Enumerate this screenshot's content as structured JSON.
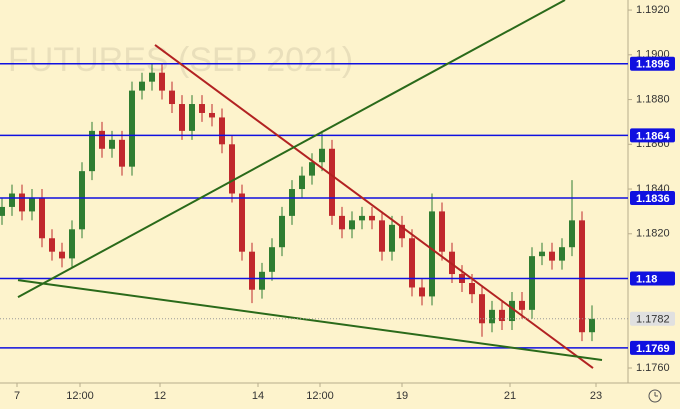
{
  "chart_data": {
    "type": "candlestick",
    "watermark": "FUTURES (SEP 2021)",
    "xlim": [
      0,
      157
    ],
    "xticks": [
      {
        "value": 4.25,
        "label": "7"
      },
      {
        "value": 20,
        "label": "12:00"
      },
      {
        "value": 40,
        "label": "12"
      },
      {
        "value": 64.5,
        "label": "14"
      },
      {
        "value": 80,
        "label": "12:00"
      },
      {
        "value": 100.5,
        "label": "19"
      },
      {
        "value": 127.5,
        "label": "21"
      },
      {
        "value": 149,
        "label": "23"
      }
    ],
    "ylim": [
      1.17533,
      1.19245
    ],
    "yticks": [
      {
        "value": 1.192,
        "label": "1.1920"
      },
      {
        "value": 1.19,
        "label": "1.1900"
      },
      {
        "value": 1.188,
        "label": "1.1880"
      },
      {
        "value": 1.186,
        "label": "1.1860"
      },
      {
        "value": 1.184,
        "label": "1.1840"
      },
      {
        "value": 1.182,
        "label": "1.1820"
      },
      {
        "value": 1.176,
        "label": "1.1760"
      }
    ],
    "up_color": "#2f7d32",
    "down_color": "#c0282d",
    "x": [
      0.5,
      3,
      5.5,
      8,
      10.5,
      13,
      15.5,
      18,
      20.5,
      23,
      25.5,
      28,
      30.5,
      33,
      35.5,
      38,
      40.5,
      43,
      45.5,
      48,
      50.5,
      53,
      55.5,
      58,
      60.5,
      63,
      65.5,
      68,
      70.5,
      73,
      75.5,
      78,
      80.5,
      83,
      85.5,
      88,
      90.5,
      93,
      95.5,
      98,
      100.5,
      103,
      105.5,
      108,
      110.5,
      113,
      115.5,
      118,
      120.5,
      123,
      125.5,
      128,
      130.5,
      133,
      135.5,
      138,
      140.5,
      143,
      145.5,
      148
    ],
    "open": [
      1.1828,
      1.1832,
      1.1838,
      1.183,
      1.1836,
      1.1818,
      1.1812,
      1.1809,
      1.1822,
      1.1848,
      1.1866,
      1.1858,
      1.1862,
      1.185,
      1.1884,
      1.1888,
      1.1892,
      1.1884,
      1.1878,
      1.1866,
      1.1878,
      1.1874,
      1.1872,
      1.186,
      1.1838,
      1.1812,
      1.1795,
      1.1803,
      1.1814,
      1.1828,
      1.184,
      1.1846,
      1.1852,
      1.1858,
      1.1828,
      1.1822,
      1.1826,
      1.1828,
      1.1826,
      1.1812,
      1.1824,
      1.1818,
      1.1796,
      1.1792,
      1.183,
      1.1812,
      1.1802,
      1.1798,
      1.1793,
      1.178,
      1.1786,
      1.1781,
      1.179,
      1.1786,
      1.181,
      1.1812,
      1.1808,
      1.1814,
      1.1826,
      1.1776
    ],
    "high": [
      1.1836,
      1.1842,
      1.1842,
      1.184,
      1.184,
      1.1822,
      1.1816,
      1.1826,
      1.1852,
      1.187,
      1.187,
      1.1866,
      1.1866,
      1.1888,
      1.1892,
      1.1896,
      1.1896,
      1.1888,
      1.1882,
      1.1882,
      1.1882,
      1.1878,
      1.1876,
      1.1864,
      1.1842,
      1.1816,
      1.1807,
      1.1818,
      1.1832,
      1.1844,
      1.185,
      1.1856,
      1.1866,
      1.1862,
      1.1832,
      1.183,
      1.1832,
      1.1832,
      1.183,
      1.1828,
      1.1828,
      1.1822,
      1.18,
      1.1838,
      1.1834,
      1.1816,
      1.1806,
      1.1802,
      1.1797,
      1.179,
      1.179,
      1.1794,
      1.1794,
      1.1814,
      1.1816,
      1.1816,
      1.1818,
      1.1844,
      1.183,
      1.1788
    ],
    "low": [
      1.1824,
      1.1828,
      1.1826,
      1.1826,
      1.1814,
      1.1808,
      1.1805,
      1.1805,
      1.1818,
      1.1844,
      1.1854,
      1.1854,
      1.1846,
      1.1846,
      1.188,
      1.1884,
      1.188,
      1.1874,
      1.1862,
      1.1862,
      1.187,
      1.1868,
      1.1856,
      1.1834,
      1.1808,
      1.1789,
      1.1791,
      1.1799,
      1.181,
      1.1824,
      1.1836,
      1.1842,
      1.1848,
      1.1824,
      1.1818,
      1.1818,
      1.1822,
      1.1822,
      1.1808,
      1.1808,
      1.1814,
      1.1792,
      1.1788,
      1.1788,
      1.1808,
      1.1798,
      1.1794,
      1.1789,
      1.1774,
      1.1776,
      1.1777,
      1.1777,
      1.1782,
      1.1782,
      1.1806,
      1.1804,
      1.1804,
      1.181,
      1.1772,
      1.1772
    ],
    "close": [
      1.1832,
      1.1838,
      1.183,
      1.1836,
      1.1818,
      1.1812,
      1.1809,
      1.1822,
      1.1848,
      1.1866,
      1.1858,
      1.1862,
      1.185,
      1.1884,
      1.1888,
      1.1892,
      1.1884,
      1.1878,
      1.1866,
      1.1878,
      1.1874,
      1.1872,
      1.186,
      1.1838,
      1.1812,
      1.1795,
      1.1803,
      1.1814,
      1.1828,
      1.184,
      1.1846,
      1.1852,
      1.1858,
      1.1828,
      1.1822,
      1.1826,
      1.1828,
      1.1826,
      1.1812,
      1.1824,
      1.1818,
      1.1796,
      1.1792,
      1.183,
      1.1812,
      1.1802,
      1.1798,
      1.1793,
      1.178,
      1.1786,
      1.1781,
      1.179,
      1.1786,
      1.181,
      1.1812,
      1.1808,
      1.1814,
      1.1826,
      1.1776,
      1.1782
    ],
    "levels": {
      "color": "#1010e0",
      "values": [
        1.1896,
        1.1864,
        1.1836,
        1.18,
        1.1769
      ]
    },
    "last_price": 1.1782,
    "trend_lines": [
      {
        "color": "#b22222",
        "x": [
          38.75,
          148.25
        ],
        "y": [
          1.19044,
          1.176
        ]
      },
      {
        "color": "#2a6a1a",
        "x": [
          4.5,
          141.25
        ],
        "y": [
          1.17917,
          1.19245
        ]
      },
      {
        "color": "#2a6a1a",
        "x": [
          4.5,
          150.5
        ],
        "y": [
          1.17993,
          1.17636
        ]
      }
    ]
  }
}
